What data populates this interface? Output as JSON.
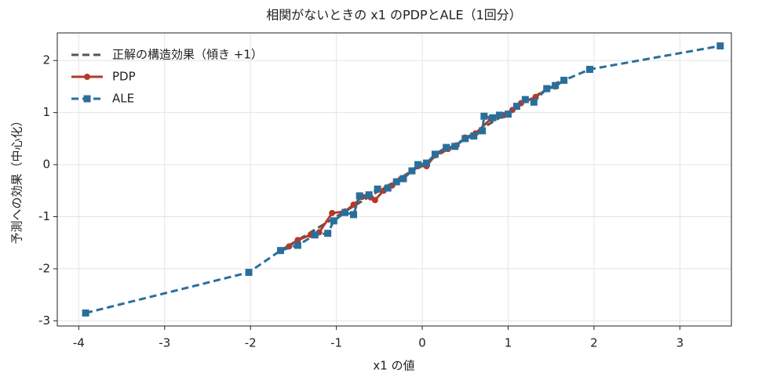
{
  "chart_data": {
    "type": "line",
    "title": "相関がないときの x1 のPDPとALE（1回分）",
    "xlabel": "x1 の値",
    "ylabel": "予測への効果（中心化）",
    "xlim": [
      -4.25,
      3.6
    ],
    "ylim": [
      -3.1,
      2.53
    ],
    "xticks": [
      -4,
      -3,
      -2,
      -1,
      0,
      1,
      2,
      3
    ],
    "yticks": [
      -3,
      -2,
      -1,
      0,
      1,
      2
    ],
    "grid": true,
    "legend": "upper left",
    "series": [
      {
        "name": "正解の構造効果（傾き +1）",
        "color": "#555555",
        "dash": true,
        "marker": "none",
        "x": [
          -1.65,
          1.65
        ],
        "values": [
          -1.65,
          1.65
        ]
      },
      {
        "name": "PDP",
        "color": "#b5392b",
        "dash": false,
        "marker": "circle",
        "x": [
          -1.65,
          -1.55,
          -1.45,
          -1.3,
          -1.2,
          -1.05,
          -0.9,
          -0.8,
          -0.7,
          -0.6,
          -0.55,
          -0.45,
          -0.35,
          -0.25,
          -0.12,
          -0.05,
          0.05,
          0.15,
          0.3,
          0.4,
          0.5,
          0.62,
          0.8,
          0.95,
          1.05,
          1.15,
          1.32,
          1.45,
          1.55,
          1.65
        ],
        "values": [
          -1.65,
          -1.57,
          -1.45,
          -1.35,
          -1.3,
          -0.93,
          -0.9,
          -0.77,
          -0.62,
          -0.63,
          -0.68,
          -0.5,
          -0.4,
          -0.28,
          -0.12,
          -0.03,
          -0.03,
          0.18,
          0.3,
          0.37,
          0.52,
          0.6,
          0.88,
          0.95,
          1.05,
          1.18,
          1.3,
          1.45,
          1.5,
          1.62
        ]
      },
      {
        "name": "ALE",
        "color": "#2a6f9b",
        "dash": true,
        "marker": "square",
        "x": [
          -3.92,
          -2.02,
          -1.65,
          -1.45,
          -1.25,
          -1.1,
          -1.03,
          -0.9,
          -0.8,
          -0.73,
          -0.62,
          -0.52,
          -0.4,
          -0.3,
          -0.22,
          -0.12,
          -0.05,
          0.05,
          0.15,
          0.28,
          0.38,
          0.5,
          0.6,
          0.7,
          0.72,
          0.82,
          0.9,
          1.0,
          1.1,
          1.2,
          1.3,
          1.45,
          1.55,
          1.65,
          1.95,
          3.47
        ],
        "values": [
          -2.85,
          -2.07,
          -1.65,
          -1.55,
          -1.35,
          -1.32,
          -1.08,
          -0.92,
          -0.96,
          -0.6,
          -0.58,
          -0.47,
          -0.45,
          -0.33,
          -0.27,
          -0.12,
          0.0,
          0.03,
          0.2,
          0.33,
          0.35,
          0.5,
          0.55,
          0.65,
          0.93,
          0.9,
          0.95,
          0.97,
          1.12,
          1.25,
          1.2,
          1.46,
          1.52,
          1.62,
          1.83,
          2.28
        ]
      }
    ]
  }
}
